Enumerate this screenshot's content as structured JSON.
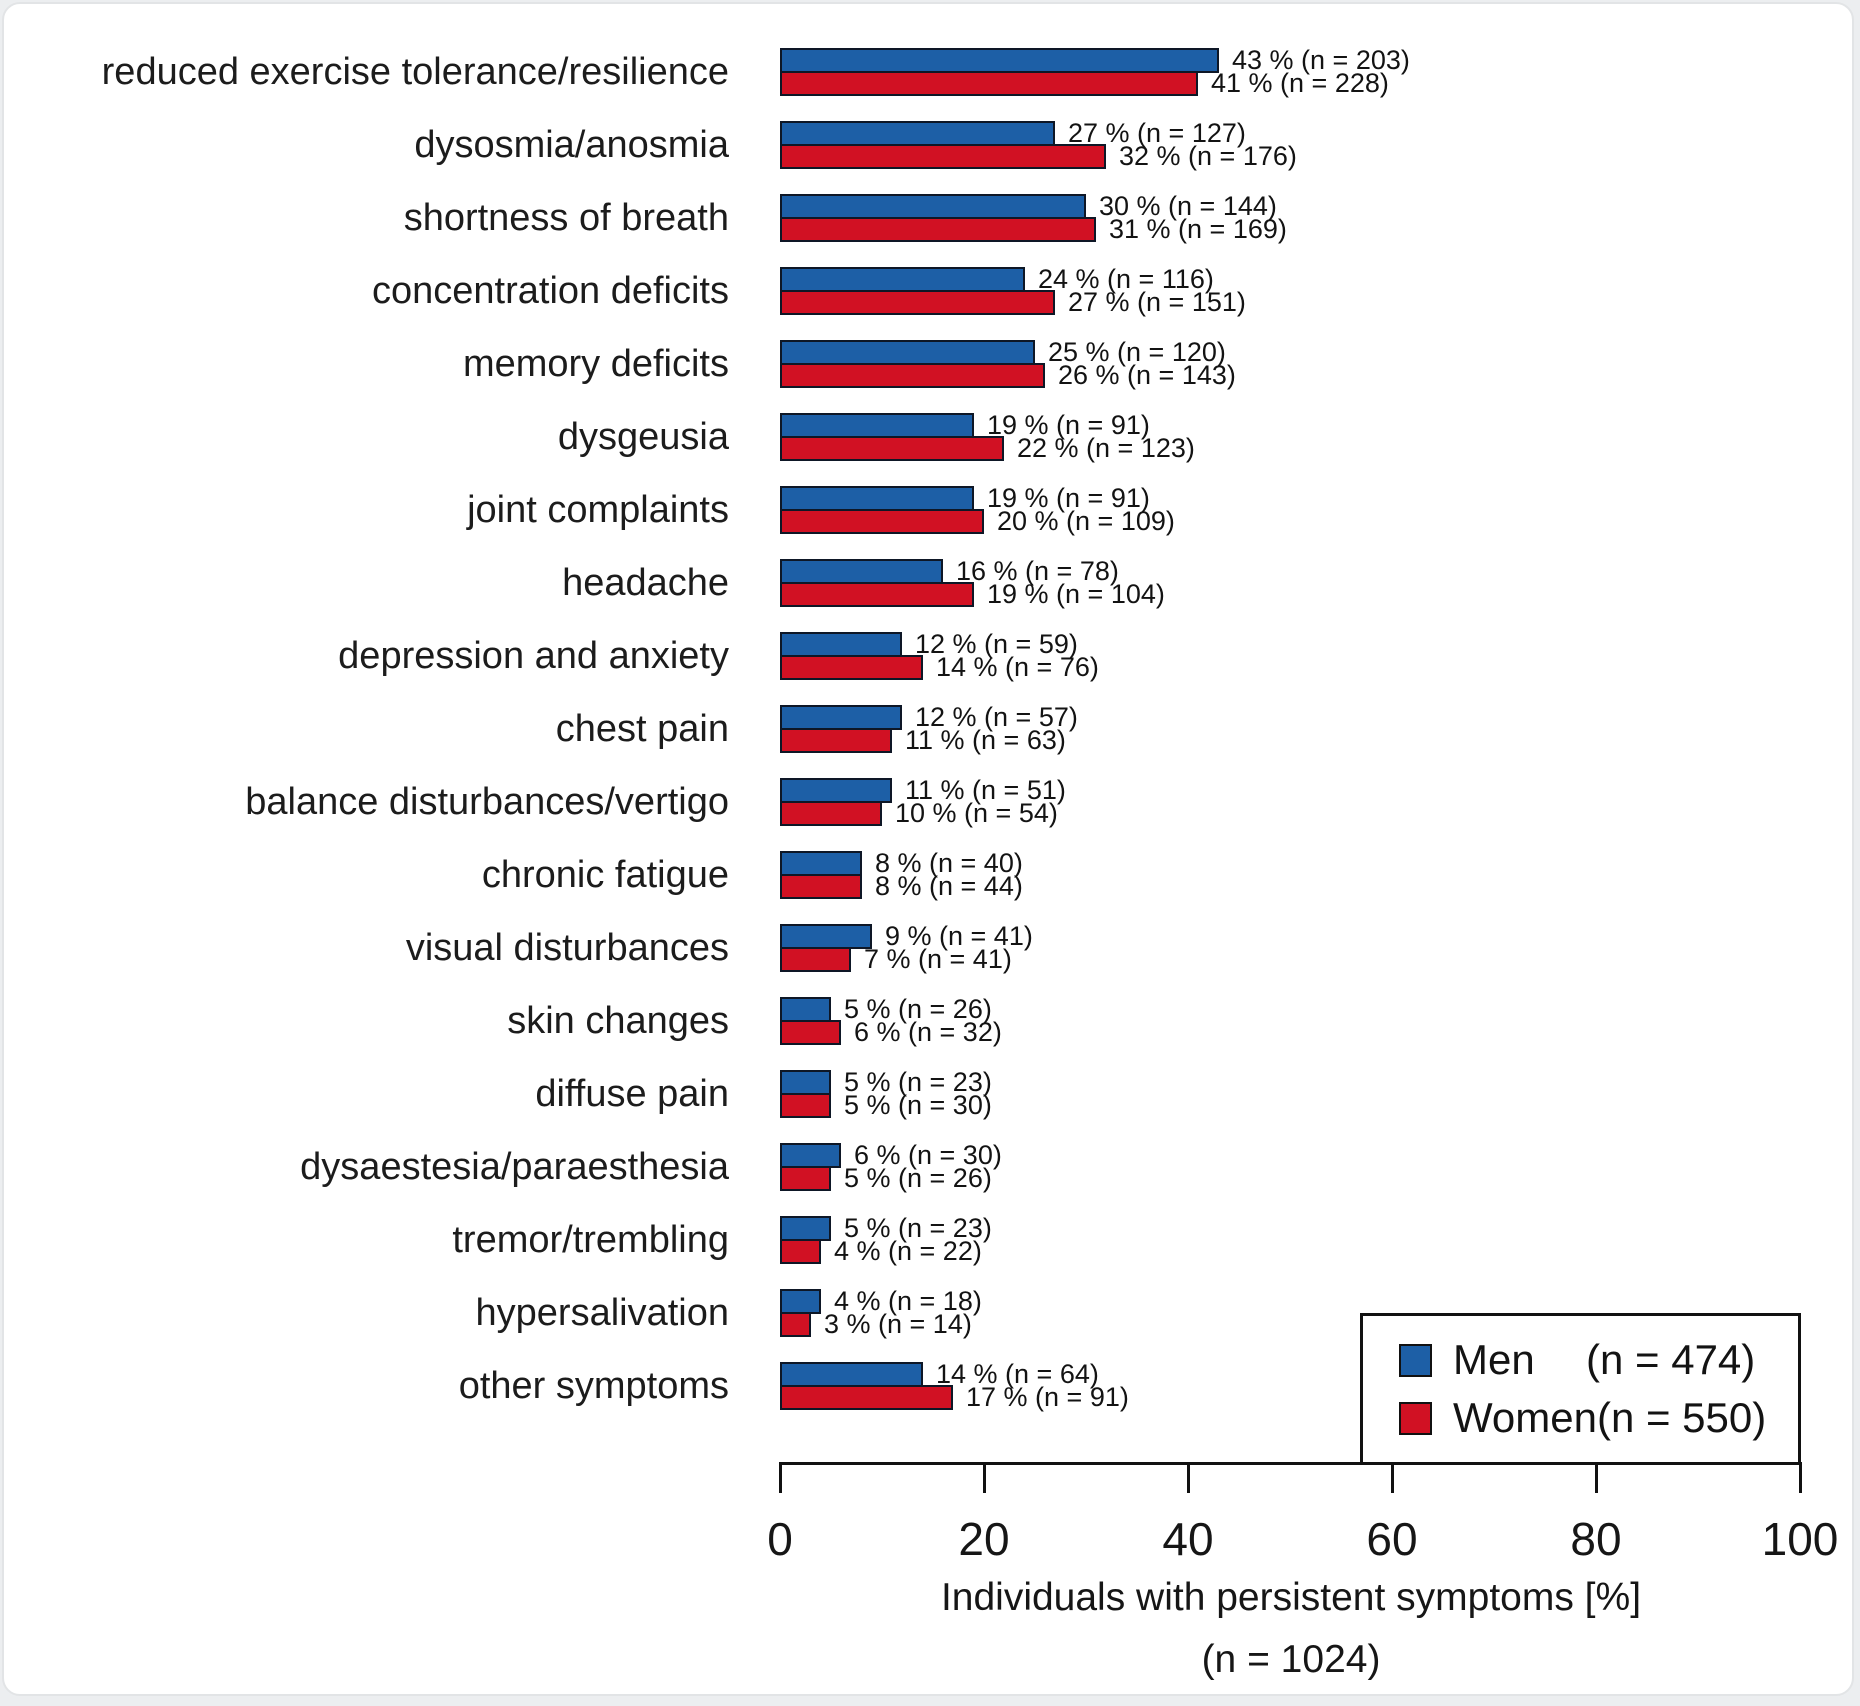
{
  "chart_data": {
    "type": "bar",
    "orientation": "horizontal",
    "title": "",
    "xlabel": "Individuals with persistent symptoms [%]",
    "xlabel_sub": "(n = 1024)",
    "xlim": [
      0,
      100
    ],
    "xticks": [
      "0",
      "20",
      "40",
      "60",
      "80",
      "100"
    ],
    "grid": false,
    "legend_position": "bottom-right",
    "categories": [
      "reduced exercise tolerance/resilience",
      "dysosmia/anosmia",
      "shortness of breath",
      "concentration deficits",
      "memory deficits",
      "dysgeusia",
      "joint complaints",
      "headache",
      "depression and anxiety",
      "chest pain",
      "balance disturbances/vertigo",
      "chronic fatigue",
      "visual disturbances",
      "skin changes",
      "diffuse pain",
      "dysaestesia/paraesthesia",
      "tremor/trembling",
      "hypersalivation",
      "other symptoms"
    ],
    "series": [
      {
        "name": "Men",
        "legend_count": "(n = 474)",
        "color": "#1d5fa6",
        "values": [
          43,
          27,
          30,
          24,
          25,
          19,
          19,
          16,
          12,
          12,
          11,
          8,
          9,
          5,
          5,
          6,
          5,
          4,
          14
        ],
        "counts": [
          203,
          127,
          144,
          116,
          120,
          91,
          91,
          78,
          59,
          57,
          51,
          40,
          41,
          26,
          23,
          30,
          23,
          18,
          64
        ],
        "labels": [
          "43 % (n = 203)",
          "27 % (n = 127)",
          "30 % (n = 144)",
          "24 % (n = 116)",
          "25 % (n = 120)",
          "19 % (n = 91)",
          "19 % (n = 91)",
          "16 % (n = 78)",
          "12 % (n = 59)",
          "12 % (n = 57)",
          "11 % (n = 51)",
          "8 % (n = 40)",
          "9 % (n = 41)",
          "5 % (n = 26)",
          "5 % (n = 23)",
          "6 % (n = 30)",
          "5 % (n = 23)",
          "4 % (n = 18)",
          "14 % (n = 64)"
        ]
      },
      {
        "name": "Women",
        "legend_count": "(n = 550)",
        "color": "#d11123",
        "values": [
          41,
          32,
          31,
          27,
          26,
          22,
          20,
          19,
          14,
          11,
          10,
          8,
          7,
          6,
          5,
          5,
          4,
          3,
          17
        ],
        "counts": [
          228,
          176,
          169,
          151,
          143,
          123,
          109,
          104,
          76,
          63,
          54,
          44,
          41,
          32,
          30,
          26,
          22,
          14,
          91
        ],
        "labels": [
          "41 % (n = 228)",
          "32 % (n = 176)",
          "31 % (n = 169)",
          "27 % (n = 151)",
          "26 % (n = 143)",
          "22 % (n = 123)",
          "20 % (n = 109)",
          "19 % (n = 104)",
          "14 % (n = 76)",
          "11 % (n = 63)",
          "10 % (n = 54)",
          "8 % (n = 44)",
          "7 % (n = 41)",
          "6 % (n = 32)",
          "5 % (n = 30)",
          "5 % (n = 26)",
          "4 % (n = 22)",
          "3 % (n = 14)",
          "17 % (n = 91)"
        ]
      }
    ]
  },
  "legend": {
    "items": [
      {
        "name": "Men",
        "count": "(n = 474)",
        "color": "#1d5fa6"
      },
      {
        "name": "Women",
        "count": "(n = 550)",
        "color": "#d11123"
      }
    ]
  },
  "colors": {
    "men": "#1d5fa6",
    "women": "#d11123",
    "bar_outline": "#0e1726",
    "axis": "#111111",
    "background": "#ffffff"
  }
}
